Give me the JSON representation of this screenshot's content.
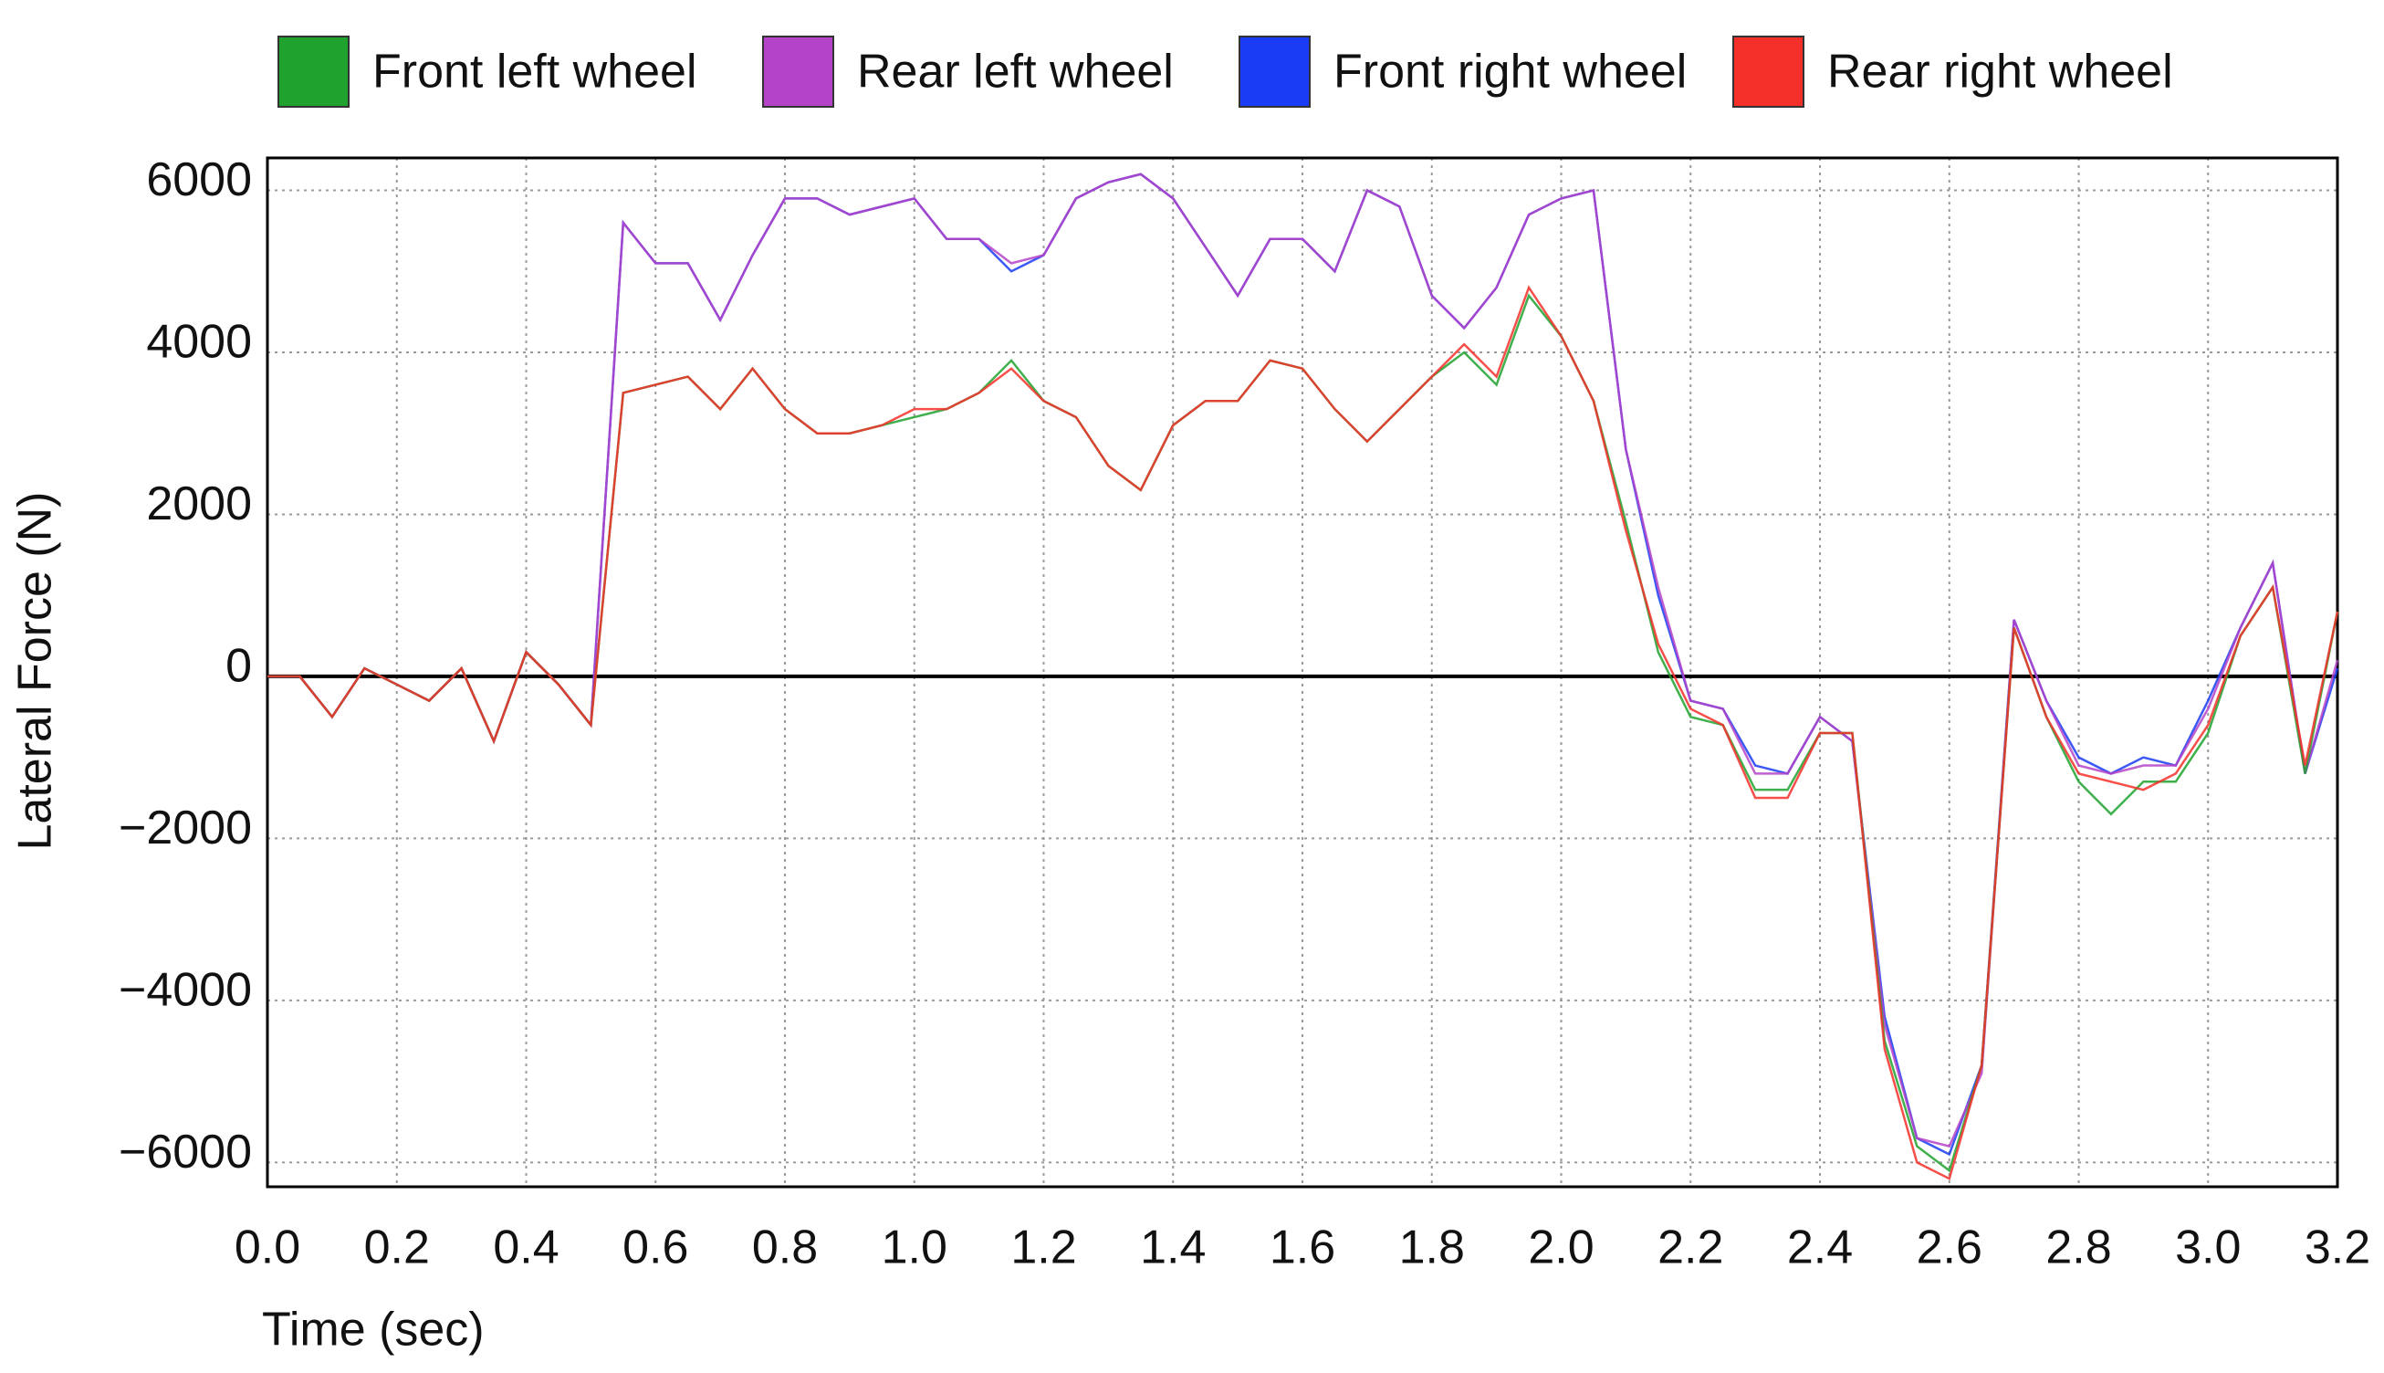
{
  "chart_data": {
    "type": "line",
    "xlabel": "Time (sec)",
    "ylabel": "Lateral Force (N)",
    "x": [
      0,
      0.05,
      0.1,
      0.15,
      0.2,
      0.25,
      0.3,
      0.35,
      0.4,
      0.45,
      0.5,
      0.55,
      0.6,
      0.65,
      0.7,
      0.75,
      0.8,
      0.85,
      0.9,
      0.95,
      1.0,
      1.05,
      1.1,
      1.15,
      1.2,
      1.25,
      1.3,
      1.35,
      1.4,
      1.45,
      1.5,
      1.55,
      1.6,
      1.65,
      1.7,
      1.75,
      1.8,
      1.85,
      1.9,
      1.95,
      2.0,
      2.05,
      2.1,
      2.15,
      2.2,
      2.25,
      2.3,
      2.35,
      2.4,
      2.45,
      2.5,
      2.55,
      2.6,
      2.65,
      2.7,
      2.75,
      2.8,
      2.85,
      2.9,
      2.95,
      3.0,
      3.05,
      3.1,
      3.15,
      3.2
    ],
    "series": [
      {
        "name": "Front left wheel",
        "color": "#1fa22e",
        "values": [
          0,
          0,
          -500,
          100,
          -100,
          -300,
          100,
          -800,
          300,
          -100,
          -600,
          3500,
          3600,
          3700,
          3300,
          3800,
          3300,
          3000,
          3000,
          3100,
          3200,
          3300,
          3500,
          3900,
          3400,
          3200,
          2600,
          2300,
          3100,
          3400,
          3400,
          3900,
          3800,
          3300,
          2900,
          3300,
          3700,
          4000,
          3600,
          4700,
          4200,
          3400,
          1900,
          300,
          -500,
          -600,
          -1400,
          -1400,
          -700,
          -700,
          -4500,
          -5800,
          -6100,
          -4800,
          600,
          -500,
          -1300,
          -1700,
          -1300,
          -1300,
          -700,
          500,
          1100,
          -1200,
          800
        ]
      },
      {
        "name": "Rear left wheel",
        "color": "#b443c8",
        "values": [
          0,
          0,
          -500,
          100,
          -100,
          -300,
          100,
          -800,
          300,
          -100,
          -600,
          5600,
          5100,
          5100,
          4400,
          5200,
          5900,
          5900,
          5700,
          5800,
          5900,
          5400,
          5400,
          5100,
          5200,
          5900,
          6100,
          6200,
          5900,
          5300,
          4700,
          5400,
          5400,
          5000,
          6000,
          5800,
          4700,
          4300,
          4800,
          5700,
          5900,
          6000,
          2800,
          1100,
          -300,
          -400,
          -1200,
          -1200,
          -500,
          -800,
          -4300,
          -5700,
          -5800,
          -4900,
          700,
          -300,
          -1100,
          -1200,
          -1100,
          -1100,
          -400,
          600,
          1400,
          -1200,
          200
        ]
      },
      {
        "name": "Front right wheel",
        "color": "#1a3cf5",
        "values": [
          0,
          0,
          -500,
          100,
          -100,
          -300,
          100,
          -800,
          300,
          -100,
          -600,
          5600,
          5100,
          5100,
          4400,
          5200,
          5900,
          5900,
          5700,
          5800,
          5900,
          5400,
          5400,
          5000,
          5200,
          5900,
          6100,
          6200,
          5900,
          5300,
          4700,
          5400,
          5400,
          5000,
          6000,
          5800,
          4700,
          4300,
          4800,
          5700,
          5900,
          6000,
          2800,
          1000,
          -300,
          -400,
          -1100,
          -1200,
          -500,
          -800,
          -4200,
          -5700,
          -5900,
          -4800,
          700,
          -300,
          -1000,
          -1200,
          -1000,
          -1100,
          -300,
          600,
          1400,
          -1200,
          100
        ]
      },
      {
        "name": "Rear right wheel",
        "color": "#f5302a",
        "values": [
          0,
          0,
          -500,
          100,
          -100,
          -300,
          100,
          -800,
          300,
          -100,
          -600,
          3500,
          3600,
          3700,
          3300,
          3800,
          3300,
          3000,
          3000,
          3100,
          3300,
          3300,
          3500,
          3800,
          3400,
          3200,
          2600,
          2300,
          3100,
          3400,
          3400,
          3900,
          3800,
          3300,
          2900,
          3300,
          3700,
          4100,
          3700,
          4800,
          4200,
          3400,
          1800,
          400,
          -400,
          -600,
          -1500,
          -1500,
          -700,
          -700,
          -4600,
          -6000,
          -6200,
          -4800,
          600,
          -500,
          -1200,
          -1300,
          -1400,
          -1200,
          -600,
          500,
          1100,
          -1100,
          800
        ]
      }
    ],
    "xlim": [
      0,
      3.2
    ],
    "ylim": [
      -6300,
      6400
    ],
    "xticks": [
      {
        "value": 0,
        "label": "0.0"
      },
      0.2,
      0.4,
      0.6,
      0.8,
      {
        "value": 1,
        "label": "1.0"
      },
      1.2,
      1.4,
      1.6,
      1.8,
      {
        "value": 2,
        "label": "2.0"
      },
      2.2,
      2.4,
      2.6,
      2.8,
      {
        "value": 3,
        "label": "3.0"
      },
      3.2
    ],
    "yticks": [
      {
        "value": -6000,
        "label": "−6000"
      },
      {
        "value": -4000,
        "label": "−4000"
      },
      {
        "value": -2000,
        "label": "−2000"
      },
      0,
      2000,
      4000,
      6000
    ],
    "grid": true
  }
}
